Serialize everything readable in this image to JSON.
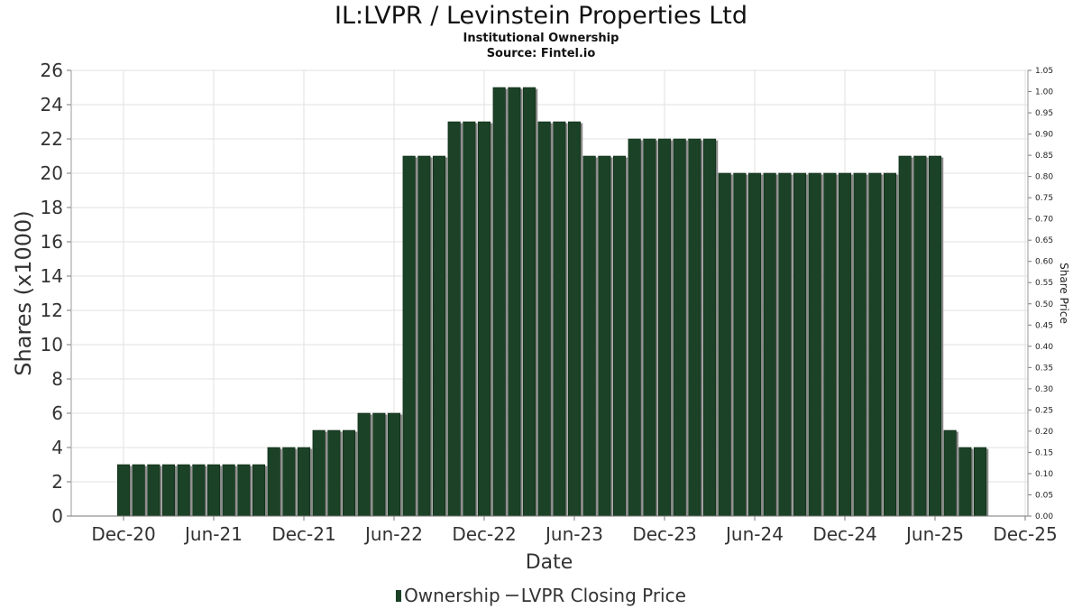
{
  "chart_data": {
    "type": "bar",
    "title": "IL:LVPR / Levinstein Properties Ltd",
    "subtitle": "Institutional Ownership",
    "source": "Source: Fintel.io",
    "xlabel": "Date",
    "ylabel": "Shares (x1000)",
    "y2label": "Share Price",
    "ylim": [
      0,
      26
    ],
    "y2lim": [
      0,
      1.05
    ],
    "yticks": [
      "0",
      "2",
      "4",
      "6",
      "8",
      "10",
      "12",
      "14",
      "16",
      "18",
      "20",
      "22",
      "24",
      "26"
    ],
    "y2ticks": [
      "0.00",
      "0.05",
      "0.10",
      "0.15",
      "0.20",
      "0.25",
      "0.30",
      "0.35",
      "0.40",
      "0.45",
      "0.50",
      "0.55",
      "0.60",
      "0.65",
      "0.70",
      "0.75",
      "0.80",
      "0.85",
      "0.90",
      "0.95",
      "1.00",
      "1.05"
    ],
    "xticks": [
      "Dec-20",
      "Jun-21",
      "Dec-21",
      "Jun-22",
      "Dec-22",
      "Jun-23",
      "Dec-23",
      "Jun-24",
      "Dec-24",
      "Jun-25",
      "Dec-25"
    ],
    "grid": true,
    "legend_position": "bottom",
    "series": [
      {
        "name": "Ownership",
        "color": "#1b4226",
        "values": [
          3,
          3,
          3,
          3,
          3,
          3,
          3,
          3,
          3,
          3,
          4,
          4,
          4,
          5,
          5,
          5,
          6,
          6,
          6,
          21,
          21,
          21,
          23,
          23,
          23,
          25,
          25,
          25,
          23,
          23,
          23,
          21,
          21,
          21,
          22,
          22,
          22,
          22,
          22,
          22,
          20,
          20,
          20,
          20,
          20,
          20,
          20,
          20,
          20,
          20,
          20,
          20,
          21,
          21,
          21,
          5,
          4,
          4
        ]
      },
      {
        "name": "LVPR Closing Price",
        "color": "#555555",
        "values": []
      }
    ]
  },
  "legend": {
    "ownership_label": "Ownership",
    "price_label": "LVPR Closing Price"
  }
}
